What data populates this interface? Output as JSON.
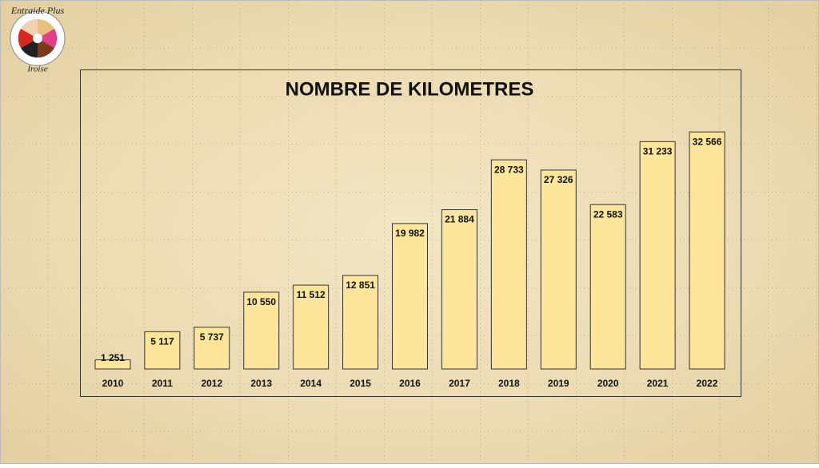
{
  "logo": {
    "top": "Entraide Plus",
    "bottom": "Iroise"
  },
  "chart_data": {
    "type": "bar",
    "title": "NOMBRE DE KILOMETRES",
    "categories": [
      "2010",
      "2011",
      "2012",
      "2013",
      "2014",
      "2015",
      "2016",
      "2017",
      "2018",
      "2019",
      "2020",
      "2021",
      "2022"
    ],
    "values": [
      1251,
      5117,
      5737,
      10550,
      11512,
      12851,
      19982,
      21884,
      28733,
      27326,
      22583,
      31233,
      32566
    ],
    "value_labels": [
      "1 251",
      "5 117",
      "5 737",
      "10 550",
      "11 512",
      "12 851",
      "19 982",
      "21 884",
      "28 733",
      "27 326",
      "22 583",
      "31 233",
      "32 566"
    ],
    "color": "#fde59a",
    "ylim": [
      0,
      35000
    ]
  }
}
